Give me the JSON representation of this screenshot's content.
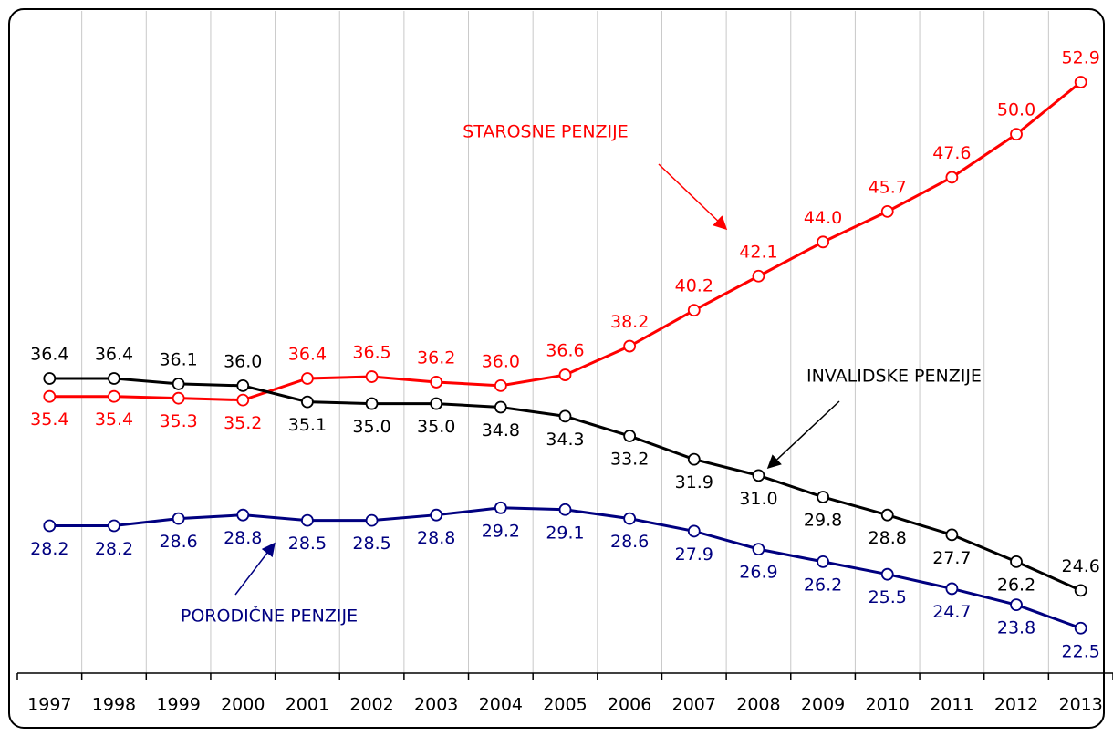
{
  "chart_data": {
    "type": "line",
    "categories": [
      "1997",
      "1998",
      "1999",
      "2000",
      "2001",
      "2002",
      "2003",
      "2004",
      "2005",
      "2006",
      "2007",
      "2008",
      "2009",
      "2010",
      "2011",
      "2012",
      "2013"
    ],
    "ylim": [
      20,
      56
    ],
    "series": [
      {
        "name": "STAROSNE PENZIJE",
        "color": "#ff0000",
        "values": [
          35.4,
          35.4,
          35.3,
          35.2,
          36.4,
          36.5,
          36.2,
          36.0,
          36.6,
          38.2,
          40.2,
          42.1,
          44.0,
          45.7,
          47.6,
          50.0,
          52.9
        ],
        "value_labels": [
          "35.4",
          "35.4",
          "35.3",
          "35.2",
          "36.4",
          "36.5",
          "36.2",
          "36.0",
          "36.6",
          "38.2",
          "40.2",
          "42.1",
          "44.0",
          "45.7",
          "47.6",
          "50.0",
          "52.9"
        ]
      },
      {
        "name": "INVALIDSKE PENZIJE",
        "color": "#000000",
        "values": [
          36.4,
          36.4,
          36.1,
          36.0,
          35.1,
          35.0,
          35.0,
          34.8,
          34.3,
          33.2,
          31.9,
          31.0,
          29.8,
          28.8,
          27.7,
          26.2,
          24.6
        ],
        "value_labels": [
          "36.4",
          "36.4",
          "36.1",
          "36.0",
          "35.1",
          "35.0",
          "35.0",
          "34.8",
          "34.3",
          "33.2",
          "31.9",
          "31.0",
          "29.8",
          "28.8",
          "27.7",
          "26.2",
          "24.6"
        ]
      },
      {
        "name": "PORODIČNE PENZIJE",
        "color": "#000080",
        "values": [
          28.2,
          28.2,
          28.6,
          28.8,
          28.5,
          28.5,
          28.8,
          29.2,
          29.1,
          28.6,
          27.9,
          26.9,
          26.2,
          25.5,
          24.7,
          23.8,
          22.5
        ],
        "value_labels": [
          "28.2",
          "28.2",
          "28.6",
          "28.8",
          "28.5",
          "28.5",
          "28.8",
          "29.2",
          "29.1",
          "28.6",
          "27.9",
          "26.9",
          "26.2",
          "25.5",
          "24.7",
          "23.8",
          "22.5"
        ]
      }
    ]
  }
}
